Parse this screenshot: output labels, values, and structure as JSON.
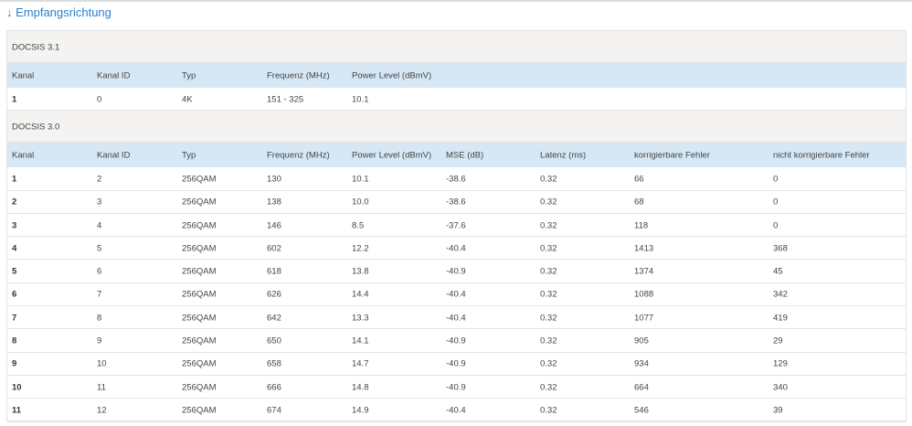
{
  "heading": "↓ Empfangsrichtung",
  "sections": [
    {
      "title": "DOCSIS 3.1",
      "columns": [
        "Kanal",
        "Kanal ID",
        "Typ",
        "Frequenz (MHz)",
        "Power Level (dBmV)"
      ],
      "rows": [
        [
          "1",
          "0",
          "4K",
          "151 - 325",
          "10.1"
        ]
      ]
    },
    {
      "title": "DOCSIS 3.0",
      "columns": [
        "Kanal",
        "Kanal ID",
        "Typ",
        "Frequenz (MHz)",
        "Power Level (dBmV)",
        "MSE (dB)",
        "Latenz (ms)",
        "korrigierbare Fehler",
        "nicht korrigierbare Fehler"
      ],
      "rows": [
        [
          "1",
          "2",
          "256QAM",
          "130",
          "10.1",
          "-38.6",
          "0.32",
          "66",
          "0"
        ],
        [
          "2",
          "3",
          "256QAM",
          "138",
          "10.0",
          "-38.6",
          "0.32",
          "68",
          "0"
        ],
        [
          "3",
          "4",
          "256QAM",
          "146",
          "8.5",
          "-37.6",
          "0.32",
          "118",
          "0"
        ],
        [
          "4",
          "5",
          "256QAM",
          "602",
          "12.2",
          "-40.4",
          "0.32",
          "1413",
          "368"
        ],
        [
          "5",
          "6",
          "256QAM",
          "618",
          "13.8",
          "-40.9",
          "0.32",
          "1374",
          "45"
        ],
        [
          "6",
          "7",
          "256QAM",
          "626",
          "14.4",
          "-40.4",
          "0.32",
          "1088",
          "342"
        ],
        [
          "7",
          "8",
          "256QAM",
          "642",
          "13.3",
          "-40.4",
          "0.32",
          "1077",
          "419"
        ],
        [
          "8",
          "9",
          "256QAM",
          "650",
          "14.1",
          "-40.9",
          "0.32",
          "905",
          "29"
        ],
        [
          "9",
          "10",
          "256QAM",
          "658",
          "14.7",
          "-40.9",
          "0.32",
          "934",
          "129"
        ],
        [
          "10",
          "11",
          "256QAM",
          "666",
          "14.8",
          "-40.9",
          "0.32",
          "664",
          "340"
        ],
        [
          "11",
          "12",
          "256QAM",
          "674",
          "14.9",
          "-40.4",
          "0.32",
          "546",
          "39"
        ]
      ]
    }
  ]
}
